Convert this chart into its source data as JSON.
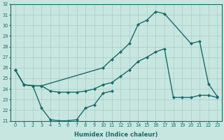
{
  "xlabel": "Humidex (Indice chaleur)",
  "bg_color": "#c8e6e0",
  "grid_color": "#a8ccc8",
  "line_color": "#1a6b6b",
  "markersize": 2.5,
  "linewidth": 1.0,
  "ylim": [
    21,
    32
  ],
  "yticks": [
    21,
    22,
    23,
    24,
    25,
    26,
    27,
    28,
    29,
    30,
    31,
    32
  ],
  "xticks": [
    0,
    1,
    2,
    3,
    4,
    5,
    6,
    7,
    8,
    9,
    10,
    11,
    12,
    13,
    14,
    15,
    16,
    17,
    18,
    19,
    20,
    21,
    22,
    23
  ],
  "curve_top_x": [
    0,
    1,
    2,
    3,
    10,
    11,
    12,
    13,
    14,
    15,
    16,
    17,
    20,
    21,
    22,
    23
  ],
  "curve_top_y": [
    25.8,
    24.4,
    24.3,
    24.3,
    26.0,
    26.8,
    27.5,
    28.3,
    30.1,
    30.5,
    31.3,
    31.1,
    28.3,
    28.5,
    24.5,
    23.3
  ],
  "curve_mid_x": [
    0,
    1,
    2,
    3,
    4,
    5,
    6,
    7,
    8,
    9,
    10,
    11,
    12,
    13,
    14,
    15,
    16,
    17,
    18,
    19,
    20,
    21,
    22,
    23
  ],
  "curve_mid_y": [
    25.8,
    24.4,
    24.3,
    24.3,
    23.8,
    23.7,
    23.7,
    23.7,
    23.8,
    24.0,
    24.4,
    24.6,
    25.2,
    25.8,
    26.6,
    27.0,
    27.5,
    27.8,
    23.2,
    23.2,
    23.2,
    23.4,
    23.4,
    23.2
  ],
  "curve_bot_x": [
    0,
    1,
    2,
    3,
    4,
    5,
    6,
    7,
    8,
    9,
    10,
    11
  ],
  "curve_bot_y": [
    25.8,
    24.4,
    24.3,
    22.2,
    21.1,
    21.0,
    21.0,
    21.1,
    22.2,
    22.5,
    23.6,
    23.8
  ]
}
